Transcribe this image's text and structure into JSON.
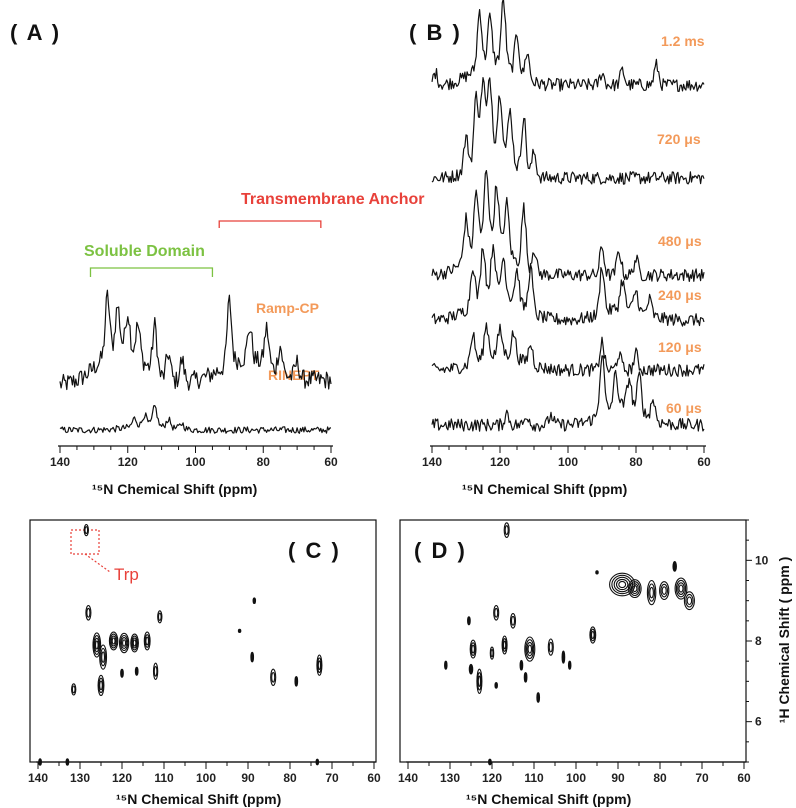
{
  "panels": {
    "A": {
      "label": "( A )",
      "title_soluble": "Soluble Domain",
      "title_tm": "Transmembrane Anchor",
      "soluble_color": "#7cc242",
      "tm_color": "#e8413a",
      "soluble_range_ppm": [
        131,
        95
      ],
      "tm_range_ppm": [
        93,
        63
      ],
      "traces": [
        {
          "name": "Ramp-CP",
          "label": "Ramp-CP",
          "peaks": [
            [
              126,
              0.55
            ],
            [
              123,
              0.4
            ],
            [
              120,
              0.35
            ],
            [
              117,
              0.3
            ],
            [
              112,
              0.45
            ],
            [
              108,
              0.25
            ],
            [
              104,
              0.2
            ],
            [
              90,
              0.6
            ],
            [
              84,
              0.3
            ],
            [
              79,
              0.35
            ],
            [
              75,
              0.25
            ],
            [
              70,
              0.15
            ]
          ],
          "broad": [
            [
              122,
              0.35,
              9
            ],
            [
              85,
              0.22,
              10
            ]
          ]
        },
        {
          "name": "RINEPT",
          "label": "RINEPT",
          "peaks": [
            [
              118,
              0.15
            ],
            [
              115,
              0.2
            ],
            [
              112,
              0.35
            ],
            [
              108,
              0.15
            ],
            [
              104,
              0.1
            ]
          ],
          "broad": [
            [
              114,
              0.08,
              8
            ]
          ]
        }
      ]
    },
    "B": {
      "label": "( B )",
      "traces": [
        {
          "name": "1.2 ms",
          "label": "1.2 ms",
          "peaks": [
            [
              139,
              0.15
            ],
            [
              126,
              0.7
            ],
            [
              123,
              0.55
            ],
            [
              119,
              0.8
            ],
            [
              115,
              0.5
            ],
            [
              112,
              0.35
            ],
            [
              90,
              0.15
            ],
            [
              84,
              0.18
            ],
            [
              74,
              0.25
            ]
          ],
          "broad": [
            [
              122,
              0.3,
              8
            ]
          ]
        },
        {
          "name": "720 us",
          "label": "720 μs",
          "peaks": [
            [
              130,
              0.4
            ],
            [
              127,
              0.8
            ],
            [
              125,
              0.9
            ],
            [
              123,
              0.85
            ],
            [
              120,
              0.7
            ],
            [
              117,
              0.6
            ],
            [
              113,
              0.7
            ],
            [
              110,
              0.3
            ]
          ],
          "broad": [
            [
              122,
              0.4,
              7
            ]
          ]
        },
        {
          "name": "480 us",
          "label": "480 μs",
          "peaks": [
            [
              130,
              0.5
            ],
            [
              127,
              0.7
            ],
            [
              124,
              0.9
            ],
            [
              121,
              0.7
            ],
            [
              118,
              0.6
            ],
            [
              113,
              0.75
            ],
            [
              110,
              0.3
            ],
            [
              90,
              0.35
            ],
            [
              85,
              0.3
            ],
            [
              80,
              0.2
            ]
          ],
          "broad": [
            [
              123,
              0.45,
              8
            ]
          ]
        },
        {
          "name": "240 us",
          "label": "240 μs",
          "peaks": [
            [
              128,
              0.5
            ],
            [
              125,
              0.65
            ],
            [
              122,
              0.6
            ],
            [
              119,
              0.45
            ],
            [
              115,
              0.4
            ],
            [
              111,
              0.55
            ],
            [
              90,
              0.6
            ],
            [
              84,
              0.35
            ],
            [
              80,
              0.25
            ],
            [
              76,
              0.2
            ]
          ],
          "broad": [
            [
              121,
              0.35,
              9
            ],
            [
              84,
              0.15,
              8
            ]
          ]
        },
        {
          "name": "120 us",
          "label": "120 μs",
          "peaks": [
            [
              128,
              0.35
            ],
            [
              124,
              0.4
            ],
            [
              120,
              0.3
            ],
            [
              116,
              0.3
            ],
            [
              111,
              0.25
            ],
            [
              90,
              0.35
            ],
            [
              85,
              0.2
            ],
            [
              80,
              0.2
            ]
          ],
          "broad": [
            [
              120,
              0.2,
              9
            ]
          ]
        },
        {
          "name": "60 us",
          "label": "60 μs",
          "peaks": [
            [
              118,
              0.15
            ],
            [
              112,
              0.12
            ],
            [
              105,
              0.12
            ],
            [
              90,
              0.75
            ],
            [
              86,
              0.4
            ],
            [
              82,
              0.35
            ],
            [
              79,
              0.45
            ],
            [
              75,
              0.25
            ]
          ],
          "broad": [
            [
              84,
              0.25,
              8
            ]
          ]
        }
      ]
    },
    "C": {
      "label": "( C )",
      "annotation": "Trp",
      "annotation_color": "#e8413a",
      "ylim": [
        5.0,
        11.0
      ],
      "peaks": [
        [
          128.5,
          10.75,
          0.5,
          0.14,
          2
        ],
        [
          128,
          8.7,
          0.6,
          0.18,
          2
        ],
        [
          131.5,
          6.8,
          0.5,
          0.14,
          2
        ],
        [
          126,
          7.9,
          0.9,
          0.3,
          4
        ],
        [
          124.5,
          7.6,
          0.8,
          0.3,
          3
        ],
        [
          125,
          6.9,
          0.7,
          0.25,
          3
        ],
        [
          122,
          8.0,
          1.0,
          0.22,
          4
        ],
        [
          119.5,
          7.95,
          1.1,
          0.24,
          4
        ],
        [
          117,
          7.95,
          0.9,
          0.22,
          4
        ],
        [
          114,
          8.0,
          0.7,
          0.22,
          3
        ],
        [
          111,
          8.6,
          0.5,
          0.15,
          2
        ],
        [
          112,
          7.25,
          0.5,
          0.2,
          2
        ],
        [
          120,
          7.2,
          0.3,
          0.1,
          1
        ],
        [
          116.5,
          7.25,
          0.3,
          0.1,
          1
        ],
        [
          88.5,
          9.0,
          0.2,
          0.07,
          1
        ],
        [
          92,
          8.25,
          0.1,
          0.04,
          1
        ],
        [
          89,
          7.6,
          0.3,
          0.12,
          1
        ],
        [
          84,
          7.1,
          0.6,
          0.2,
          2
        ],
        [
          78.5,
          7.0,
          0.3,
          0.12,
          1
        ],
        [
          73,
          7.4,
          0.6,
          0.25,
          3
        ],
        [
          139.5,
          5.0,
          0.3,
          0.08,
          1
        ],
        [
          133,
          5.0,
          0.3,
          0.08,
          1
        ],
        [
          73.5,
          5.0,
          0.25,
          0.07,
          1
        ]
      ]
    },
    "D": {
      "label": "( D )",
      "ylabel": "¹H Chemical Shift ( ppm )",
      "ylim": [
        5.0,
        11.0
      ],
      "yticks": [
        6,
        8,
        10
      ],
      "peaks": [
        [
          116.5,
          10.75,
          0.6,
          0.18,
          2
        ],
        [
          119,
          8.7,
          0.6,
          0.18,
          2
        ],
        [
          125.5,
          8.5,
          0.3,
          0.1,
          1
        ],
        [
          124.5,
          7.8,
          0.7,
          0.22,
          3
        ],
        [
          125,
          7.3,
          0.4,
          0.12,
          1
        ],
        [
          123,
          7.0,
          0.6,
          0.3,
          3
        ],
        [
          120,
          7.7,
          0.4,
          0.15,
          2
        ],
        [
          117,
          7.9,
          0.6,
          0.22,
          3
        ],
        [
          115,
          8.5,
          0.6,
          0.18,
          2
        ],
        [
          113,
          7.4,
          0.3,
          0.12,
          1
        ],
        [
          112,
          7.1,
          0.3,
          0.12,
          1
        ],
        [
          111,
          7.8,
          1.2,
          0.3,
          4
        ],
        [
          109,
          6.6,
          0.3,
          0.12,
          1
        ],
        [
          106,
          7.85,
          0.6,
          0.2,
          2
        ],
        [
          103,
          7.6,
          0.3,
          0.15,
          1
        ],
        [
          101.5,
          7.4,
          0.25,
          0.1,
          1
        ],
        [
          96,
          8.15,
          0.7,
          0.2,
          3
        ],
        [
          131,
          7.4,
          0.25,
          0.1,
          1
        ],
        [
          120.5,
          5.0,
          0.3,
          0.07,
          1
        ],
        [
          119,
          6.9,
          0.2,
          0.07,
          1
        ],
        [
          89,
          9.4,
          3.0,
          0.28,
          5
        ],
        [
          86,
          9.3,
          1.5,
          0.22,
          4
        ],
        [
          82,
          9.2,
          1.0,
          0.3,
          3
        ],
        [
          79,
          9.25,
          1.1,
          0.22,
          3
        ],
        [
          75,
          9.3,
          1.4,
          0.26,
          4
        ],
        [
          73,
          9.0,
          1.2,
          0.22,
          3
        ],
        [
          76.5,
          9.85,
          0.4,
          0.12,
          1
        ],
        [
          95,
          9.7,
          0.15,
          0.04,
          1
        ]
      ]
    }
  },
  "chart_data": [
    {
      "type": "line",
      "panel": "A",
      "xlabel": "¹⁵N Chemical Shift (ppm)",
      "xlim": [
        140,
        60
      ],
      "xticks": [
        140,
        120,
        100,
        80,
        60
      ],
      "series": [
        {
          "name": "Ramp-CP"
        },
        {
          "name": "RINEPT"
        }
      ]
    },
    {
      "type": "line",
      "panel": "B",
      "xlabel": "¹⁵N Chemical Shift (ppm)",
      "xlim": [
        140,
        60
      ],
      "xticks": [
        140,
        120,
        100,
        80,
        60
      ],
      "series": [
        {
          "name": "1.2 ms"
        },
        {
          "name": "720 μs"
        },
        {
          "name": "480 μs"
        },
        {
          "name": "240 μs"
        },
        {
          "name": "120 μs"
        },
        {
          "name": "60 μs"
        }
      ]
    },
    {
      "type": "heatmap",
      "panel": "C",
      "xlabel": "¹⁵N Chemical Shift (ppm)",
      "xlim": [
        140,
        60
      ],
      "xticks": [
        140,
        130,
        120,
        110,
        100,
        90,
        80,
        70,
        60
      ]
    },
    {
      "type": "heatmap",
      "panel": "D",
      "xlabel": "¹⁵N Chemical Shift (ppm)",
      "ylabel": "¹H Chemical Shift ( ppm )",
      "xlim": [
        140,
        60
      ],
      "xticks": [
        140,
        130,
        120,
        110,
        100,
        90,
        80,
        70,
        60
      ],
      "yticks": [
        6,
        8,
        10
      ]
    }
  ]
}
